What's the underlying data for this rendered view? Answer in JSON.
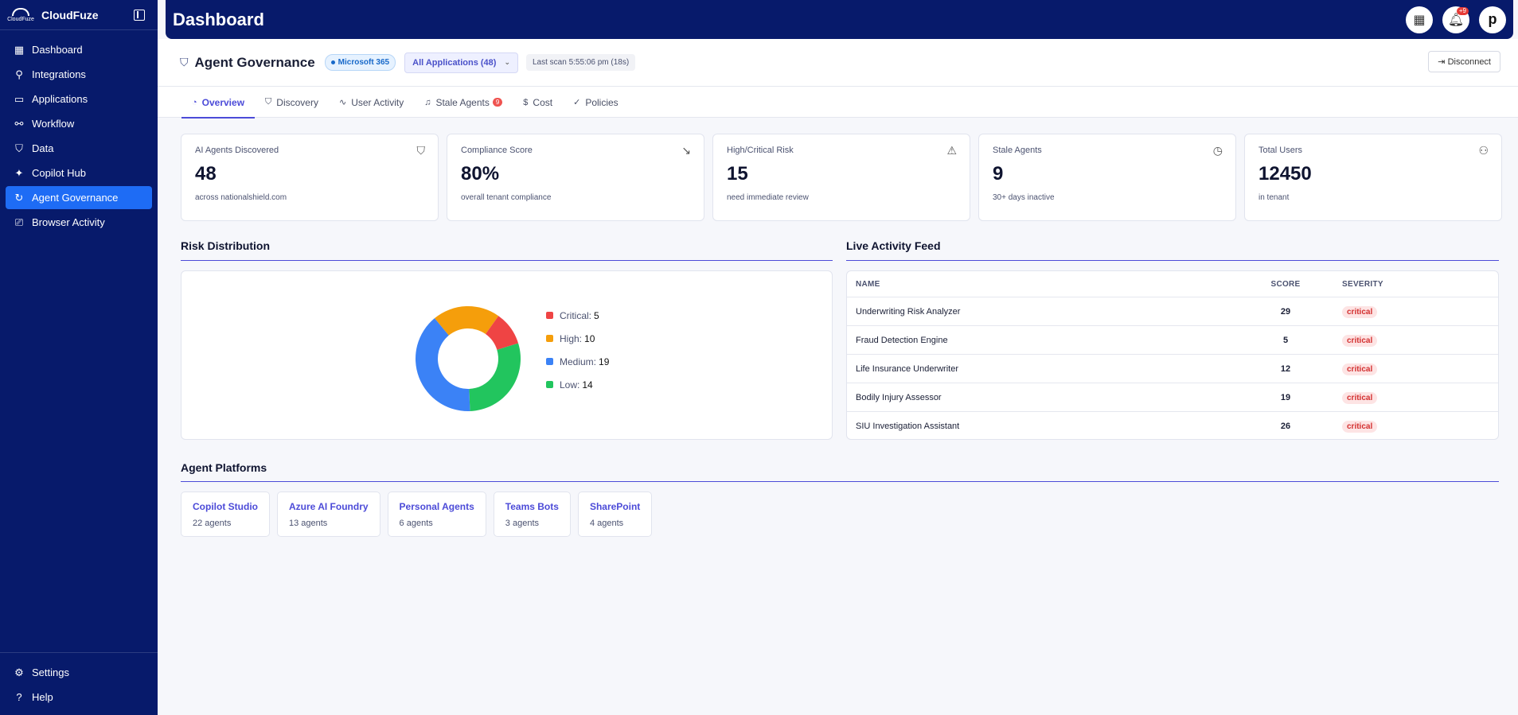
{
  "brand": {
    "name": "CloudFuze",
    "logo_text": "CloudFuze"
  },
  "sidebar": {
    "items": [
      {
        "label": "Dashboard",
        "icon": "grid-icon"
      },
      {
        "label": "Integrations",
        "icon": "plug-icon"
      },
      {
        "label": "Applications",
        "icon": "window-icon"
      },
      {
        "label": "Workflow",
        "icon": "workflow-icon"
      },
      {
        "label": "Data",
        "icon": "shield-icon"
      },
      {
        "label": "Copilot Hub",
        "icon": "sparkle-icon"
      },
      {
        "label": "Agent Governance",
        "icon": "refresh-icon",
        "active": true
      },
      {
        "label": "Browser Activity",
        "icon": "monitor-icon"
      }
    ],
    "bottom": [
      {
        "label": "Settings",
        "icon": "gear-icon"
      },
      {
        "label": "Help",
        "icon": "help-icon"
      }
    ]
  },
  "header": {
    "title": "Dashboard",
    "notif_count": "+9",
    "avatar_letter": "p"
  },
  "subheader": {
    "title": "Agent Governance",
    "badge": "Microsoft 365",
    "app_select": "All Applications (48)",
    "last_scan": "Last scan 5:55:06 pm (18s)",
    "disconnect": "Disconnect"
  },
  "tabs": [
    {
      "label": "Overview",
      "icon": "overview-icon",
      "active": true
    },
    {
      "label": "Discovery",
      "icon": "shield-icon"
    },
    {
      "label": "User Activity",
      "icon": "activity-icon"
    },
    {
      "label": "Stale Agents",
      "icon": "bell-icon",
      "badge": "9"
    },
    {
      "label": "Cost",
      "icon": "dollar-icon"
    },
    {
      "label": "Policies",
      "icon": "check-circle-icon"
    }
  ],
  "stats": [
    {
      "label": "AI Agents Discovered",
      "value": "48",
      "sub": "across nationalshield.com",
      "icon": "shield-icon"
    },
    {
      "label": "Compliance Score",
      "value": "80%",
      "sub": "overall tenant compliance",
      "icon": "trend-down-icon"
    },
    {
      "label": "High/Critical Risk",
      "value": "15",
      "sub": "need immediate review",
      "icon": "warning-icon"
    },
    {
      "label": "Stale Agents",
      "value": "9",
      "sub": "30+ days inactive",
      "icon": "clock-icon"
    },
    {
      "label": "Total Users",
      "value": "12450",
      "sub": "in tenant",
      "icon": "users-icon"
    }
  ],
  "risk": {
    "title": "Risk Distribution",
    "chart_data": {
      "type": "pie",
      "categories": [
        "Critical",
        "High",
        "Medium",
        "Low"
      ],
      "values": [
        5,
        10,
        19,
        14
      ],
      "colors": [
        "#ef4444",
        "#f59e0b",
        "#3b82f6",
        "#22c55e"
      ],
      "title": "",
      "legend": "right"
    }
  },
  "feed": {
    "title": "Live Activity Feed",
    "columns": [
      "NAME",
      "SCORE",
      "SEVERITY"
    ],
    "rows": [
      {
        "name": "Underwriting Risk Analyzer",
        "score": "29",
        "severity": "critical"
      },
      {
        "name": "Fraud Detection Engine",
        "score": "5",
        "severity": "critical"
      },
      {
        "name": "Life Insurance Underwriter",
        "score": "12",
        "severity": "critical"
      },
      {
        "name": "Bodily Injury Assessor",
        "score": "19",
        "severity": "critical"
      },
      {
        "name": "SIU Investigation Assistant",
        "score": "26",
        "severity": "critical"
      }
    ]
  },
  "platforms": {
    "title": "Agent Platforms",
    "items": [
      {
        "name": "Copilot Studio",
        "count": "22 agents"
      },
      {
        "name": "Azure AI Foundry",
        "count": "13 agents"
      },
      {
        "name": "Personal Agents",
        "count": "6 agents"
      },
      {
        "name": "Teams Bots",
        "count": "3 agents"
      },
      {
        "name": "SharePoint",
        "count": "4 agents"
      }
    ]
  }
}
